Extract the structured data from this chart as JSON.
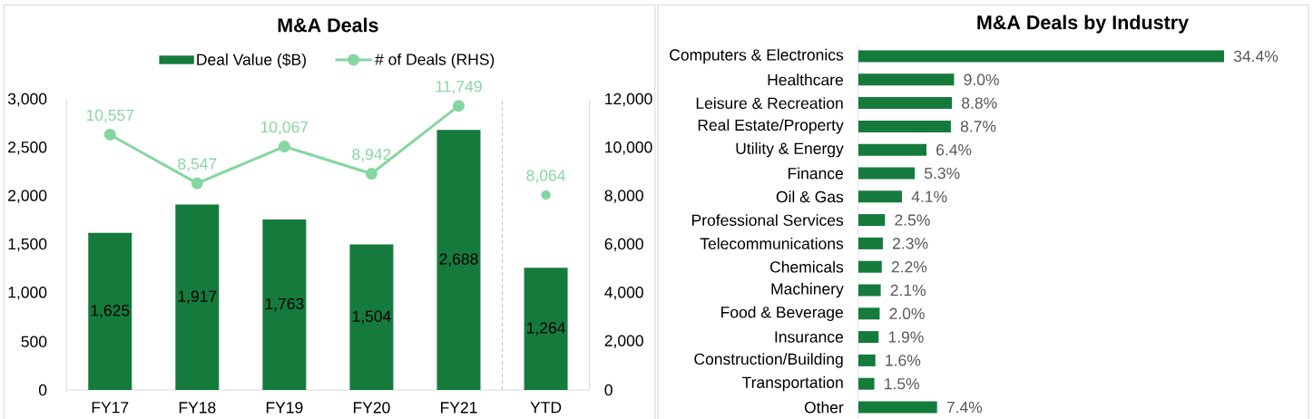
{
  "chart_data": [
    {
      "type": "bar",
      "title": "M&A Deals",
      "categories": [
        "FY17",
        "FY18",
        "FY19",
        "FY20",
        "FY21",
        "YTD"
      ],
      "series": [
        {
          "name": "Deal Value ($B)",
          "type": "bar",
          "color": "#157b3d",
          "values": [
            1625,
            1917,
            1763,
            1504,
            2688,
            1264
          ],
          "value_labels": [
            "1,625",
            "1,917",
            "1,763",
            "1,504",
            "2,688",
            "1,264"
          ]
        },
        {
          "name": "# of Deals (RHS)",
          "type": "line",
          "axis": "y2",
          "marker": "circle",
          "color": "#86d6a1",
          "values": [
            10557,
            8547,
            10067,
            8942,
            11749,
            null
          ],
          "value_labels": [
            "10,557",
            "8,547",
            "10,067",
            "8,942",
            "11,749",
            null
          ]
        },
        {
          "type": "scatter",
          "axis": "y2",
          "marker": "circle",
          "color": "#86d6a1",
          "values": [
            null,
            null,
            null,
            null,
            null,
            8064
          ],
          "value_labels": [
            null,
            null,
            null,
            null,
            null,
            "8,064"
          ]
        }
      ],
      "ylim": [
        0,
        3000
      ],
      "yticks": [
        0,
        500,
        {
          "value": 1000,
          "label": "1,000"
        },
        {
          "value": 1500,
          "label": "1,500"
        },
        {
          "value": 2000,
          "label": "2,000"
        },
        {
          "value": 2500,
          "label": "2,500"
        },
        {
          "value": 3000,
          "label": "3,000"
        }
      ],
      "y2lim": [
        0,
        12000
      ],
      "y2ticks": [
        0,
        {
          "value": 2000,
          "label": "2,000"
        },
        {
          "value": 4000,
          "label": "4,000"
        },
        {
          "value": 6000,
          "label": "6,000"
        },
        {
          "value": 8000,
          "label": "8,000"
        },
        {
          "value": 10000,
          "label": "10,000"
        },
        {
          "value": 12000,
          "label": "12,000"
        }
      ],
      "legend": "top"
    },
    {
      "type": "bar",
      "orientation": "horizontal",
      "title": "M&A Deals by Industry",
      "categories": [
        "Computers & Electronics",
        "Healthcare",
        "Leisure & Recreation",
        "Real Estate/Property",
        "Utility & Energy",
        "Finance",
        "Oil & Gas",
        "Professional Services",
        "Telecommunications",
        "Chemicals",
        "Machinery",
        "Food & Beverage",
        "Insurance",
        "Construction/Building",
        "Transportation",
        "Other"
      ],
      "color": "#157b3d",
      "values": [
        34.4,
        9.0,
        8.8,
        8.7,
        6.4,
        5.3,
        4.1,
        2.5,
        2.3,
        2.2,
        2.1,
        2.0,
        1.9,
        1.6,
        1.5,
        7.4
      ],
      "value_labels": [
        "34.4%",
        "9.0%",
        "8.8%",
        "8.7%",
        "6.4%",
        "5.3%",
        "4.1%",
        "2.5%",
        "2.3%",
        "2.2%",
        "2.1%",
        "2.0%",
        "1.9%",
        "1.6%",
        "1.5%",
        "7.4%"
      ]
    }
  ]
}
